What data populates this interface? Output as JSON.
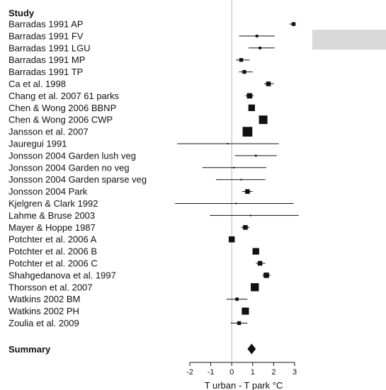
{
  "chart_data": {
    "type": "forest",
    "column_header": "Study",
    "summary_label": "Summary",
    "xlabel": "T urban - T park  °C",
    "xlim": [
      -2,
      3
    ],
    "xticks": [
      -2,
      -1,
      0,
      1,
      2,
      3
    ],
    "null_line_x": 0,
    "studies": [
      {
        "label": "Barradas 1991 AP",
        "estimate": 2.95,
        "ci_low": 2.75,
        "ci_high": 3.05,
        "weight": 0.2
      },
      {
        "label": "Barradas 1991 FV",
        "estimate": 1.2,
        "ci_low": 0.35,
        "ci_high": 2.05,
        "weight": 0.1
      },
      {
        "label": "Barradas 1991 LGU",
        "estimate": 1.35,
        "ci_low": 0.8,
        "ci_high": 2.05,
        "weight": 0.1
      },
      {
        "label": "Barradas 1991 MP",
        "estimate": 0.45,
        "ci_low": 0.2,
        "ci_high": 0.85,
        "weight": 0.2
      },
      {
        "label": "Barradas 1991 TP",
        "estimate": 0.6,
        "ci_low": 0.35,
        "ci_high": 1.0,
        "weight": 0.2
      },
      {
        "label": "Ca et al. 1998",
        "estimate": 1.75,
        "ci_low": 1.55,
        "ci_high": 2.0,
        "weight": 0.3
      },
      {
        "label": "Chang et al. 2007 61 parks",
        "estimate": 0.85,
        "ci_low": 0.65,
        "ci_high": 1.05,
        "weight": 0.4
      },
      {
        "label": "Chen & Wong 2006 BBNP",
        "estimate": 0.95,
        "ci_low": 0.8,
        "ci_high": 1.1,
        "weight": 0.6
      },
      {
        "label": "Chen & Wong 2006 CWP",
        "estimate": 1.5,
        "ci_low": 1.35,
        "ci_high": 1.65,
        "weight": 1.0
      },
      {
        "label": "Jansson et al. 2007",
        "estimate": 0.75,
        "ci_low": 0.6,
        "ci_high": 0.9,
        "weight": 1.3
      },
      {
        "label": "Jauregui 1991",
        "estimate": -0.2,
        "ci_low": -2.6,
        "ci_high": 2.25,
        "weight": 0.02
      },
      {
        "label": "Jonsson 2004 Garden lush veg",
        "estimate": 1.15,
        "ci_low": 0.15,
        "ci_high": 2.15,
        "weight": 0.05
      },
      {
        "label": "Jonsson 2004 Garden no veg",
        "estimate": 0.1,
        "ci_low": -1.4,
        "ci_high": 1.65,
        "weight": 0.03
      },
      {
        "label": "Jonsson 2004 Garden sparse veg",
        "estimate": 0.45,
        "ci_low": -0.75,
        "ci_high": 1.6,
        "weight": 0.03
      },
      {
        "label": "Jonsson 2004 Park",
        "estimate": 0.75,
        "ci_low": 0.5,
        "ci_high": 1.0,
        "weight": 0.3
      },
      {
        "label": "Kjelgren & Clark 1992",
        "estimate": 0.2,
        "ci_low": -2.7,
        "ci_high": 2.95,
        "weight": 0.02
      },
      {
        "label": "Lahme & Bruse 2003",
        "estimate": 0.9,
        "ci_low": -1.05,
        "ci_high": 3.2,
        "weight": 0.02
      },
      {
        "label": "Mayer & Hoppe 1987",
        "estimate": 0.65,
        "ci_low": 0.45,
        "ci_high": 0.85,
        "weight": 0.3
      },
      {
        "label": "Potchter et al. 2006 A",
        "estimate": 0.0,
        "ci_low": -0.1,
        "ci_high": 0.1,
        "weight": 0.5
      },
      {
        "label": "Potchter et al. 2006 B",
        "estimate": 1.15,
        "ci_low": 1.0,
        "ci_high": 1.3,
        "weight": 0.6
      },
      {
        "label": "Potchter et al. 2006 C",
        "estimate": 1.35,
        "ci_low": 1.15,
        "ci_high": 1.6,
        "weight": 0.3
      },
      {
        "label": "Shahgedanova et al. 1997",
        "estimate": 1.65,
        "ci_low": 1.45,
        "ci_high": 1.85,
        "weight": 0.4
      },
      {
        "label": "Thorsson et al. 2007",
        "estimate": 1.1,
        "ci_low": 0.95,
        "ci_high": 1.25,
        "weight": 0.9
      },
      {
        "label": "Watkins 2002 BM",
        "estimate": 0.25,
        "ci_low": -0.25,
        "ci_high": 0.75,
        "weight": 0.15
      },
      {
        "label": "Watkins 2002 PH",
        "estimate": 0.65,
        "ci_low": 0.5,
        "ci_high": 0.8,
        "weight": 0.7
      },
      {
        "label": "Zoulia et al. 2009",
        "estimate": 0.35,
        "ci_low": -0.05,
        "ci_high": 0.75,
        "weight": 0.2
      }
    ],
    "summary": {
      "estimate": 0.95,
      "ci_low": 0.75,
      "ci_high": 1.15
    }
  }
}
